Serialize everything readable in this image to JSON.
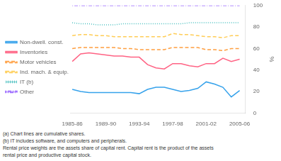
{
  "chart_data": {
    "type": "line",
    "y_label": "%",
    "x": [
      1985.5,
      1986.5,
      1987.5,
      1988.5,
      1989.5,
      1990.5,
      1991.5,
      1992.5,
      1993.5,
      1994.5,
      1995.5,
      1996.5,
      1997.5,
      1998.5,
      1999.5,
      2000.5,
      2001.5,
      2002.5,
      2003.5,
      2004.5,
      2005.5
    ],
    "xlim": [
      1985.3,
      2006.2
    ],
    "xticks": [
      {
        "value": 1985.5,
        "label": "1985-86"
      },
      {
        "value": 1989.5,
        "label": "1989-90"
      },
      {
        "value": 1993.5,
        "label": "1993-94"
      },
      {
        "value": 1997.5,
        "label": "1997-98"
      },
      {
        "value": 2001.5,
        "label": "2001-02"
      },
      {
        "value": 2005.5,
        "label": "2005-06"
      }
    ],
    "ylim": [
      0,
      100
    ],
    "yticks": [
      0,
      20,
      40,
      60,
      80,
      100
    ],
    "grid": false,
    "legend": "left",
    "series": [
      {
        "name": "Non-dwell. const.",
        "line_style": "solid",
        "values": [
          22,
          20,
          19,
          19,
          19,
          19,
          19,
          19,
          18,
          22,
          24,
          24,
          22,
          20,
          21,
          23,
          29,
          27,
          24,
          15,
          21
        ]
      },
      {
        "name": "Inventories",
        "line_style": "solid",
        "values": [
          48,
          55,
          56,
          55,
          54,
          53,
          53,
          52,
          52,
          45,
          42,
          41,
          46,
          46,
          44,
          43,
          46,
          46,
          51,
          48,
          50
        ]
      },
      {
        "name": "Motor vehicles",
        "line_style": "dashed",
        "values": [
          60,
          61,
          61,
          61,
          61,
          61,
          60,
          60,
          59,
          59,
          59,
          59,
          61,
          61,
          61,
          61,
          59,
          59,
          58,
          60,
          60
        ]
      },
      {
        "name": "Ind. mach. & equip.",
        "line_style": "dashed",
        "values": [
          72,
          73,
          73,
          72,
          72,
          71,
          71,
          71,
          71,
          71,
          71,
          71,
          74,
          73,
          73,
          72,
          71,
          71,
          70,
          72,
          72
        ]
      },
      {
        "name": "IT (b)",
        "line_style": "dotted",
        "values": [
          84,
          83,
          83,
          82,
          82,
          82,
          83,
          83,
          83,
          83,
          83,
          83,
          83,
          83,
          84,
          84,
          84,
          84,
          84,
          84,
          84
        ]
      },
      {
        "name": "Other",
        "line_style": "dashdot",
        "values": [
          100,
          100,
          100,
          100,
          100,
          100,
          100,
          100,
          100,
          100,
          100,
          100,
          100,
          100,
          100,
          100,
          100,
          100,
          100,
          100,
          100
        ]
      }
    ],
    "annotations": [
      "(a) Chart lines are cumulative shares.",
      "(b) IT includes software, and computers and peripherals.",
      "Rental price weights are the assets share of capital rent. Capital rent is the product of the assets",
      "rental price and productive capital stock."
    ]
  }
}
